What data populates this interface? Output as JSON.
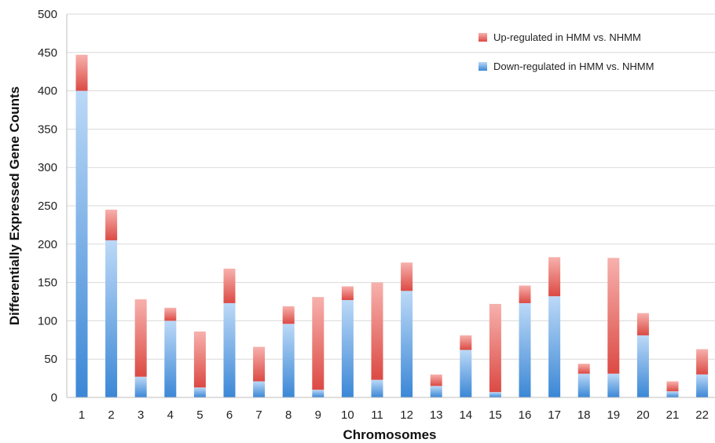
{
  "chart_data": {
    "type": "bar",
    "stacked": true,
    "categories": [
      "1",
      "2",
      "3",
      "4",
      "5",
      "6",
      "7",
      "8",
      "9",
      "10",
      "11",
      "12",
      "13",
      "14",
      "15",
      "16",
      "17",
      "18",
      "19",
      "20",
      "21",
      "22"
    ],
    "highlighted_categories": [
      "3",
      "5",
      "7",
      "9",
      "11",
      "15",
      "19",
      "21"
    ],
    "highlight_color": "#e8231b",
    "series": [
      {
        "name": "Down-regulated in HMM vs. NHMM",
        "color": "#4f97dc",
        "values": [
          400,
          205,
          27,
          100,
          13,
          123,
          21,
          96,
          10,
          127,
          23,
          139,
          15,
          62,
          7,
          123,
          132,
          31,
          31,
          81,
          8,
          30
        ]
      },
      {
        "name": "Up-regulated in HMM vs. NHMM",
        "color": "#e86b68",
        "values": [
          47,
          40,
          101,
          17,
          73,
          45,
          45,
          23,
          121,
          18,
          127,
          37,
          15,
          19,
          115,
          23,
          51,
          13,
          151,
          29,
          13,
          33
        ]
      }
    ],
    "xlabel": "Chromosomes",
    "ylabel": "Differentially Expressed Gene Counts",
    "ylim": [
      0,
      500
    ],
    "yticks": [
      "0",
      "50",
      "100",
      "150",
      "200",
      "250",
      "300",
      "350",
      "400",
      "450",
      "500"
    ],
    "grid": true,
    "legend_position": "top-right"
  }
}
